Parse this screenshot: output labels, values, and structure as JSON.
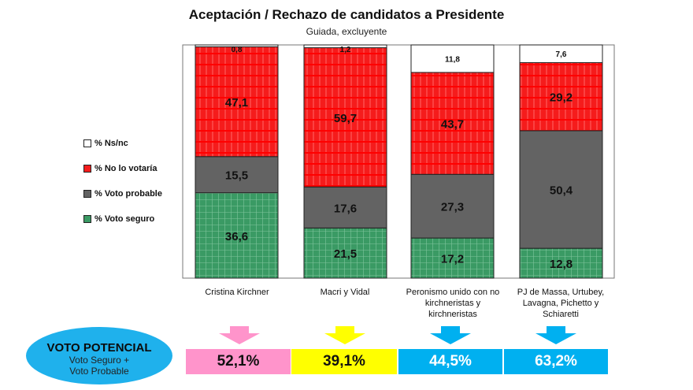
{
  "chart_data": {
    "type": "bar",
    "stacked": true,
    "percent": true,
    "title": "Aceptación / Rechazo de candidatos a Presidente",
    "subtitle": "Guiada, excluyente",
    "xlabel": "",
    "ylabel": "",
    "ylim": [
      0,
      100
    ],
    "grid": false,
    "legend_position": "left",
    "categories": [
      "Cristina Kirchner",
      "Macri y Vidal",
      "Peronismo unido con no kirchneristas y kirchneristas",
      "PJ de Massa, Urtubey, Lavagna, Pichetto y Schiaretti"
    ],
    "category_lines": [
      [
        "Cristina Kirchner"
      ],
      [
        "Macri y Vidal"
      ],
      [
        "Peronismo unido con no",
        "kirchneristas y",
        "kirchneristas"
      ],
      [
        "PJ de Massa, Urtubey,",
        "Lavagna, Pichetto y",
        "Schiaretti"
      ]
    ],
    "series": [
      {
        "name": "% Voto seguro",
        "color": "#3a9a64",
        "values": [
          36.6,
          21.5,
          17.2,
          12.8
        ],
        "labels": [
          "36,6",
          "21,5",
          "17,2",
          "12,8"
        ]
      },
      {
        "name": "% Voto probable",
        "color": "#636363",
        "values": [
          15.5,
          17.6,
          27.3,
          50.4
        ],
        "labels": [
          "15,5",
          "17,6",
          "27,3",
          "50,4"
        ]
      },
      {
        "name": "% No lo votaría",
        "color": "#f51c1c",
        "values": [
          47.1,
          59.7,
          43.7,
          29.2
        ],
        "labels": [
          "47,1",
          "59,7",
          "43,7",
          "29,2"
        ]
      },
      {
        "name": "% Ns/nc",
        "color": "#ffffff",
        "values": [
          0.8,
          1.2,
          11.8,
          7.6
        ],
        "labels": [
          "0,8",
          "1,2",
          "11,8",
          "7,6"
        ]
      }
    ],
    "legend_order": [
      "% Ns/nc",
      "% No lo votaría",
      "% Voto probable",
      "% Voto seguro"
    ]
  },
  "potential": {
    "title": "VOTO POTENCIAL",
    "subtitle_line1": "Voto Seguro +",
    "subtitle_line2": "Voto Probable",
    "ellipse_color": "#1fb1ec",
    "items": [
      {
        "value": "52,1%",
        "color": "#ff94cb",
        "text_color": "#111111"
      },
      {
        "value": "39,1%",
        "color": "#ffff00",
        "text_color": "#111111"
      },
      {
        "value": "44,5%",
        "color": "#00b0f0",
        "text_color": "#ffffff"
      },
      {
        "value": "63,2%",
        "color": "#00b0f0",
        "text_color": "#ffffff"
      }
    ]
  }
}
